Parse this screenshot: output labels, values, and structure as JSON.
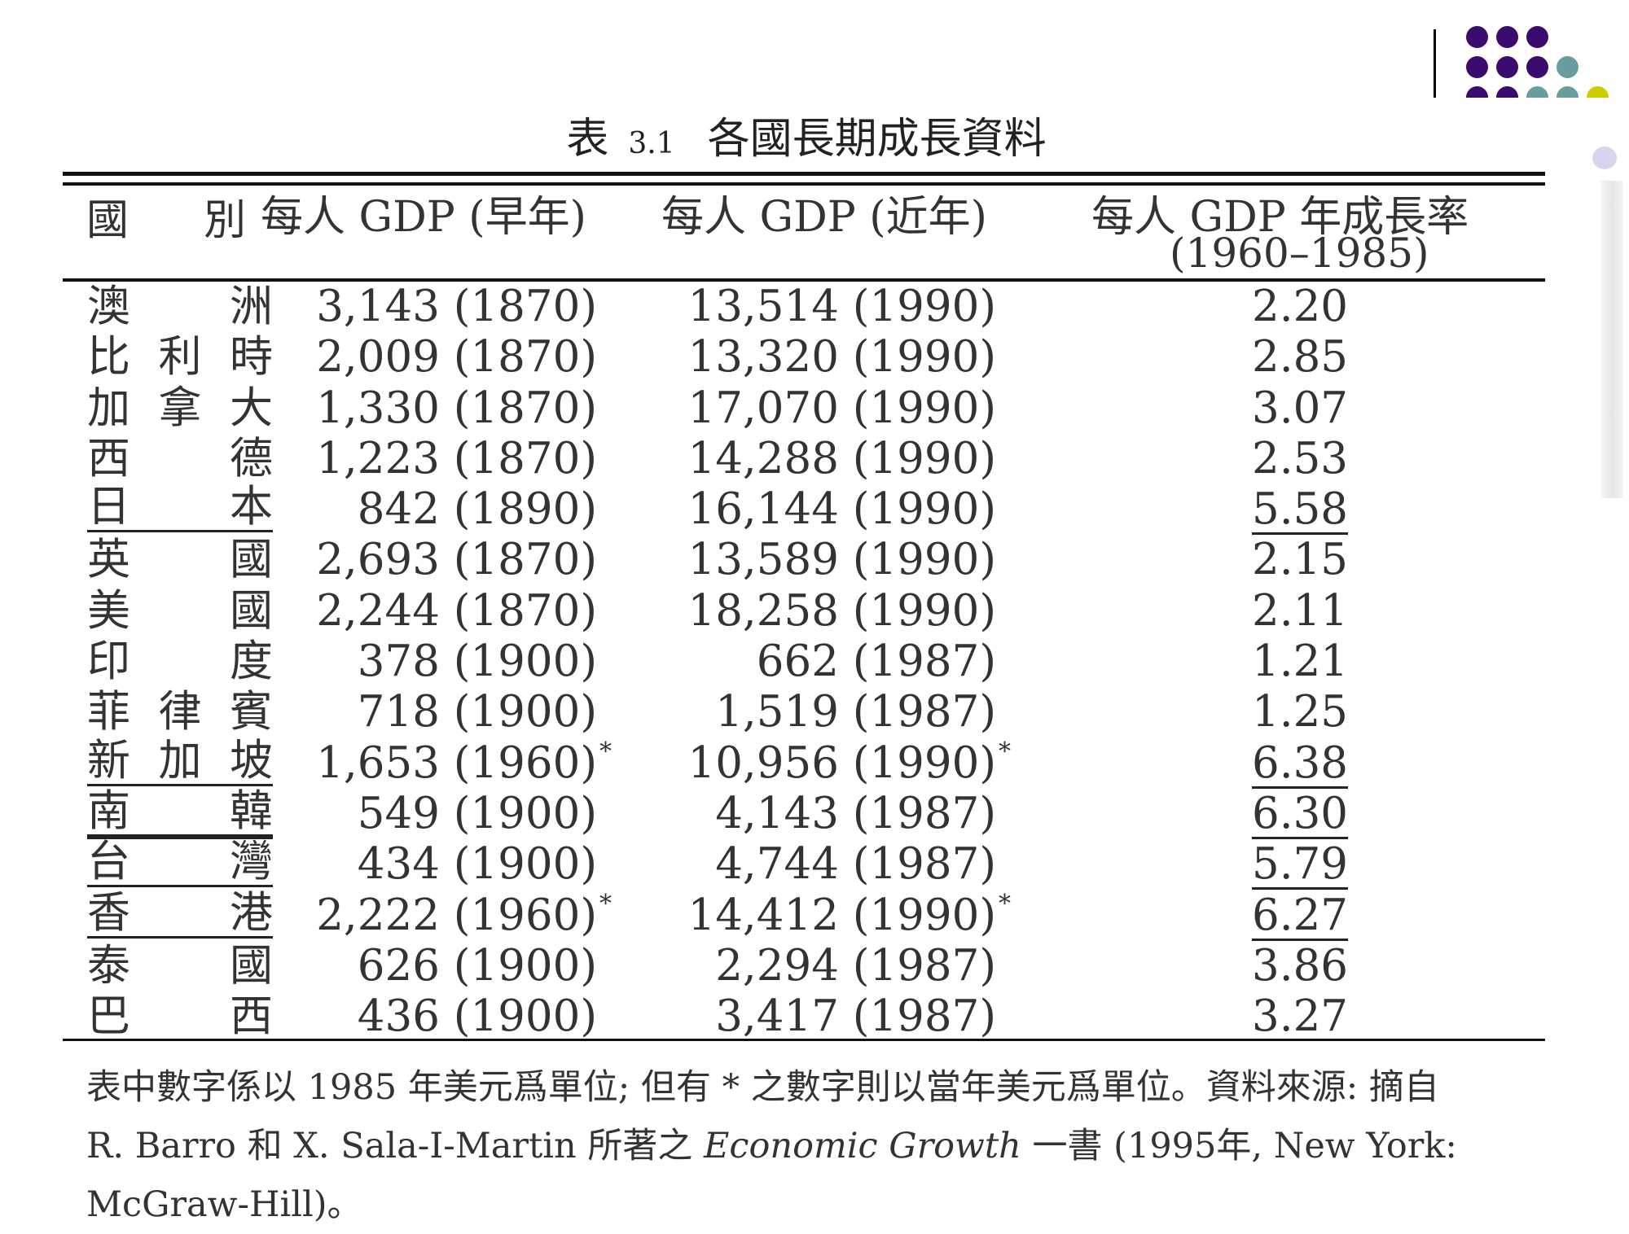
{
  "title": {
    "prefix": "表",
    "number": "3.1",
    "text": "各國長期成長資料"
  },
  "headers": {
    "country": "國　別",
    "early": "每人 GDP (早年)",
    "recent": "每人 GDP (近年)",
    "growth": "每人 GDP 年成長率",
    "growth_period": "(1960–1985)"
  },
  "rows": [
    {
      "country": [
        "澳",
        "洲"
      ],
      "early": "3,143 (1870)",
      "recent": "13,514 (1990)",
      "growth": "2.20"
    },
    {
      "country": [
        "比",
        "利",
        "時"
      ],
      "early": "2,009 (1870)",
      "recent": "13,320 (1990)",
      "growth": "2.85"
    },
    {
      "country": [
        "加",
        "拿",
        "大"
      ],
      "early": "1,330 (1870)",
      "recent": "17,070 (1990)",
      "growth": "3.07"
    },
    {
      "country": [
        "西",
        "德"
      ],
      "early": "1,223 (1870)",
      "recent": "14,288 (1990)",
      "growth": "2.53"
    },
    {
      "country": [
        "日",
        "本"
      ],
      "early": "842 (1890)",
      "recent": "16,144 (1990)",
      "growth": "5.58",
      "country_underline": "thin",
      "growth_underline": true
    },
    {
      "country": [
        "英",
        "國"
      ],
      "early": "2,693 (1870)",
      "recent": "13,589 (1990)",
      "growth": "2.15"
    },
    {
      "country": [
        "美",
        "國"
      ],
      "early": "2,244 (1870)",
      "recent": "18,258 (1990)",
      "growth": "2.11"
    },
    {
      "country": [
        "印",
        "度"
      ],
      "early": "378 (1900)",
      "recent": "662 (1987)",
      "growth": "1.21"
    },
    {
      "country": [
        "菲",
        "律",
        "賓"
      ],
      "early": "718 (1900)",
      "recent": "1,519 (1987)",
      "growth": "1.25"
    },
    {
      "country": [
        "新",
        "加",
        "坡"
      ],
      "early": "1,653 (1960)",
      "early_star": "*",
      "recent": "10,956 (1990)",
      "recent_star": "*",
      "growth": "6.38",
      "country_underline": "thin",
      "growth_underline": true
    },
    {
      "country": [
        "南",
        "韓"
      ],
      "early": "549 (1900)",
      "recent": "4,143 (1987)",
      "growth": "6.30",
      "country_underline": "thick",
      "growth_underline": true
    },
    {
      "country": [
        "台",
        "灣"
      ],
      "early": "434 (1900)",
      "recent": "4,744 (1987)",
      "growth": "5.79",
      "country_underline": "thin",
      "growth_underline": true
    },
    {
      "country": [
        "香",
        "港"
      ],
      "early": "2,222 (1960)",
      "early_star": "*",
      "recent": "14,412 (1990)",
      "recent_star": "*",
      "growth": "6.27",
      "country_underline": "thin",
      "growth_underline": true
    },
    {
      "country": [
        "泰",
        "國"
      ],
      "early": "626 (1900)",
      "recent": "2,294 (1987)",
      "growth": "3.86"
    },
    {
      "country": [
        "巴",
        "西"
      ],
      "early": "436 (1900)",
      "recent": "3,417 (1987)",
      "growth": "3.27"
    }
  ],
  "footnote": {
    "line1": "表中數字係以 1985 年美元爲單位; 但有 * 之數字則以當年美元爲單位。資料來源: 摘自",
    "line2_a": "R. Barro 和 X. Sala-I-Martin 所著之 ",
    "line2_book": "Economic Growth",
    "line2_b": " 一書 (1995年, New York:",
    "line3": "McGraw-Hill)。"
  },
  "decoration": {
    "dot_colors": {
      "purple": "#3a0a6e",
      "teal": "#6a9e9e",
      "yellow": "#cccc00",
      "lavender": "#d8d6ee"
    }
  }
}
